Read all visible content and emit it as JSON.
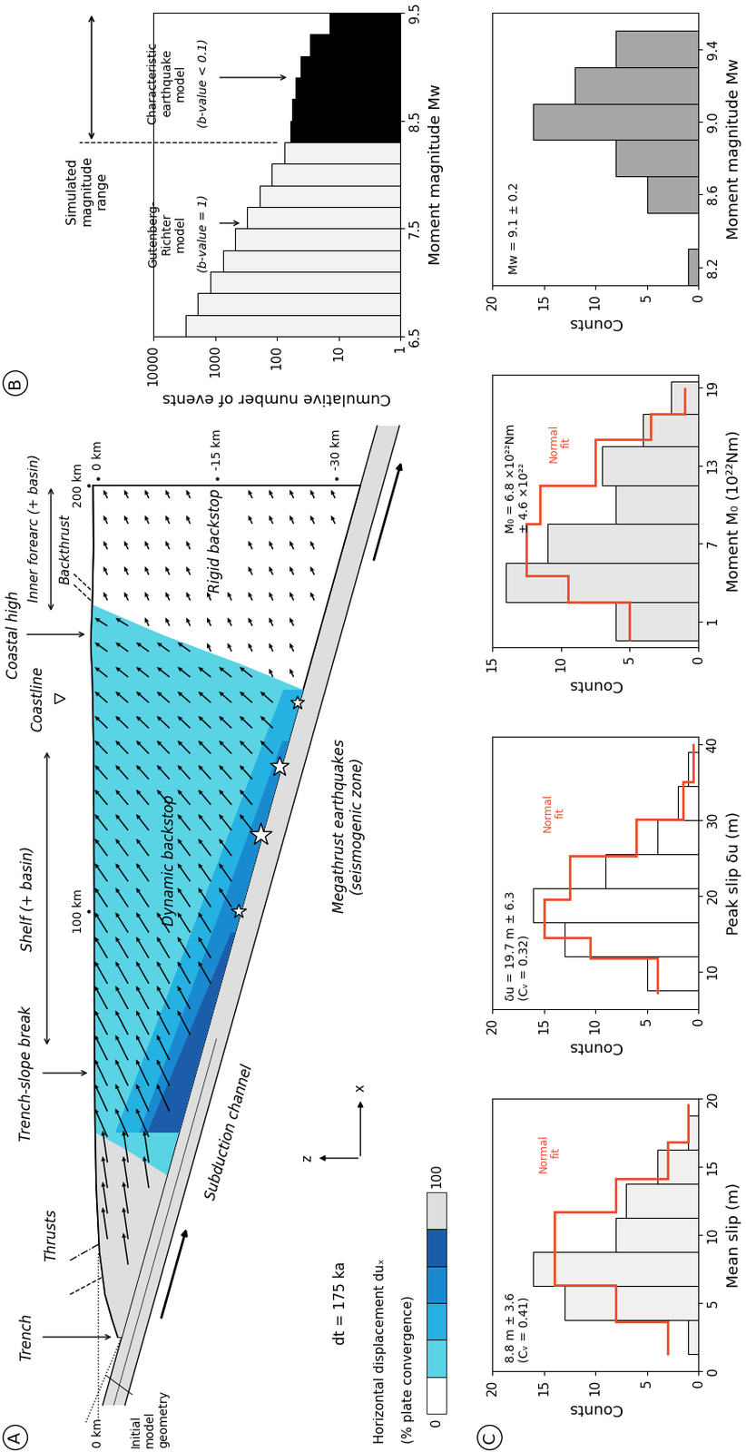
{
  "panel_labels": [
    "A",
    "B",
    "C"
  ],
  "diagram": {
    "time": "dt = 175 ka",
    "labels": {
      "trench": "Trench",
      "thrusts": "Thrusts",
      "trench_slope_break": "Trench-slope break",
      "shelf": "Shelf (+ basin)",
      "coastline": "Coastline",
      "coastal_high": "Coastal high",
      "backthrust": "Backthrust",
      "inner_forearc": "Inner forearc (+ basin)",
      "dynamic_backstop": "Dynamic backstop",
      "rigid_backstop": "Rigid backstop",
      "subduction_channel": "Subduction channel",
      "megathrust": [
        "Megathrust earthquakes",
        "(seismogenic zone)"
      ],
      "initial_geometry": "Initial model geometry"
    },
    "origin_depth_label": {
      "value": 0,
      "label": "0 km"
    },
    "distance_marks": [
      {
        "value": 100,
        "label": "100 km"
      },
      {
        "value": 200,
        "label": "200 km"
      }
    ],
    "depth_marks": [
      {
        "value": 0,
        "label": "0 km"
      },
      {
        "value": -15,
        "label": "-15 km"
      },
      {
        "value": -30,
        "label": "-30 km"
      }
    ],
    "axis_symbols": [
      "x",
      "z"
    ],
    "legend": {
      "title": "Horizontal displacement duₓ",
      "subtitle": "(% plate convergence)",
      "min": 0,
      "max": 100,
      "colors": [
        "#ffffff",
        "#5ad3e5",
        "#25b1e1",
        "#1a8ad0",
        "#1c5daa",
        "#dedede"
      ]
    }
  },
  "chart_data": [
    {
      "type": "bar",
      "orientation": "horizontal",
      "log": "x",
      "x_label": "Cumulative number of events",
      "y_label": "Moment magnitude Mw",
      "bins": [
        6.5,
        6.7,
        6.9,
        7.1,
        7.3,
        7.5,
        7.7,
        7.9,
        8.1,
        8.3,
        8.5,
        8.7,
        8.9,
        9.1,
        9.3,
        9.5
      ],
      "values": [
        3000,
        1900,
        1200,
        750,
        475,
        300,
        190,
        120,
        75,
        60,
        55,
        48,
        40,
        28,
        13
      ],
      "colors": [
        "#f2f2f2",
        "#f2f2f2",
        "#f2f2f2",
        "#f2f2f2",
        "#f2f2f2",
        "#f2f2f2",
        "#f2f2f2",
        "#f2f2f2",
        "#f2f2f2",
        "#000000",
        "#000000",
        "#000000",
        "#000000",
        "#000000",
        "#000000"
      ],
      "xlim": [
        1,
        10000
      ],
      "xticks": [
        1,
        10,
        100,
        1000,
        10000
      ],
      "ylim": [
        6.5,
        9.5
      ],
      "yticks": [
        6.5,
        7.5,
        8.5,
        9.5
      ],
      "range_label": "Simulated magnitude range",
      "range": [
        8.3,
        9.5
      ],
      "gr_label": "Gutenberg-Richter model",
      "gr_note": "(b-value = 1)",
      "char_label": "Characteristic earthquake model",
      "char_note": "(b-value < 0.1)"
    },
    {
      "type": "histogram",
      "orientation": "horizontal",
      "x_label": "Counts",
      "y_label": "Mean slip (m)",
      "annotations": [
        "8.8 m ± 3.6",
        "(Cᵥ = 0.41)"
      ],
      "bins": [
        1.25,
        3.75,
        6.25,
        8.75,
        11.25,
        13.75,
        16.25,
        18.75
      ],
      "values": [
        1,
        13,
        16,
        8,
        7,
        4,
        1
      ],
      "color": "#f0f0f0",
      "series": [
        {
          "name": "Normal fit",
          "type": "line",
          "color": "#ef4b2b",
          "bins": [
            1.2,
            3.6,
            6.3,
            11.7,
            14.1,
            16.8,
            19.6
          ],
          "values": [
            3,
            8,
            14,
            8,
            3,
            1
          ]
        }
      ],
      "xlim": [
        0,
        20
      ],
      "xticks": [
        0,
        5,
        10,
        15,
        20
      ],
      "ylim": [
        0,
        20
      ],
      "yticks": [
        0,
        5,
        10,
        15,
        20
      ]
    },
    {
      "type": "histogram",
      "orientation": "horizontal",
      "x_label": "Counts",
      "y_label": "Peak slip δu (m)",
      "annotations": [
        "δu = 19.7 m ± 6.3",
        "(Cᵥ = 0.32)"
      ],
      "bins": [
        7.5,
        12,
        16.5,
        21,
        25.5,
        30,
        34.5,
        39
      ],
      "values": [
        5,
        13,
        16,
        9,
        4,
        2,
        1
      ],
      "color": "#ffffff",
      "series": [
        {
          "name": "Normal fit",
          "type": "line",
          "color": "#ef4b2b",
          "bins": [
            7,
            11.8,
            14.4,
            19.5,
            25.3,
            30.1,
            35,
            40.1
          ],
          "values": [
            4,
            10.5,
            15,
            12.5,
            6,
            1.5,
            0.5
          ]
        }
      ],
      "xlim": [
        0,
        20
      ],
      "xticks": [
        0,
        5,
        10,
        15,
        20
      ],
      "ylim": [
        5,
        41
      ],
      "yticks": [
        10,
        20,
        30,
        40
      ]
    },
    {
      "type": "histogram",
      "orientation": "horizontal",
      "x_label": "Counts",
      "y_label": "Moment M₀ (10²²Nm)",
      "annotations": [
        "M₀ = 6.8 ×10²²Nm",
        "± 4.6 ×10²²"
      ],
      "bins": [
        -0.5,
        2.5,
        5.5,
        8.5,
        11.5,
        14.5,
        17,
        19.5
      ],
      "values": [
        6,
        14,
        11,
        6,
        7,
        4,
        2
      ],
      "color": "#e6e6e6",
      "series": [
        {
          "name": "Normal fit",
          "type": "line",
          "color": "#ef4b2b",
          "bins": [
            -0.5,
            2.5,
            4.5,
            8.5,
            11.5,
            15,
            17,
            19
          ],
          "values": [
            5,
            9.5,
            12.5,
            11.5,
            7.5,
            3.5,
            1
          ]
        }
      ],
      "xlim": [
        0,
        15
      ],
      "xticks": [
        0,
        5,
        10,
        15
      ],
      "ylim": [
        -1,
        20
      ],
      "yticks": [
        1,
        7,
        13,
        19
      ]
    },
    {
      "type": "histogram",
      "orientation": "horizontal",
      "x_label": "Counts",
      "y_label": "Moment magnitude Mw",
      "annotations": [
        "Mw = 9.1 ± 0.2"
      ],
      "bins": [
        8.1,
        8.3,
        8.5,
        8.7,
        8.9,
        9.1,
        9.3,
        9.5
      ],
      "values": [
        1,
        0,
        5,
        8,
        16,
        12,
        8
      ],
      "color": "#a6a6a6",
      "xlim": [
        0,
        20
      ],
      "xticks": [
        0,
        5,
        10,
        15,
        20
      ],
      "ylim": [
        8.1,
        9.6
      ],
      "yticks": [
        8.2,
        8.6,
        9.0,
        9.4
      ]
    }
  ]
}
